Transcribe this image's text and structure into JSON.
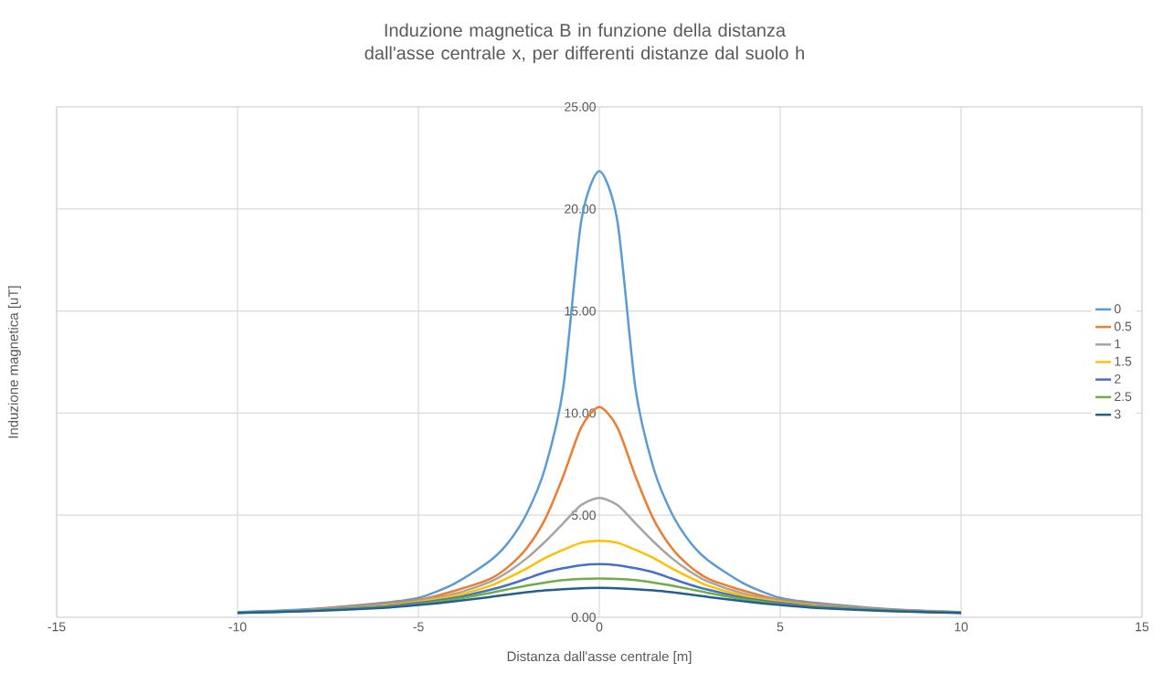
{
  "chart_data": {
    "type": "line",
    "title": "Induzione magnetica B in funzione della distanza dall'asse centrale x, per differenti distanze dal suolo h",
    "xlabel": "Distanza dall'asse centrale [m]",
    "ylabel": "Induzione magnetica [uT]",
    "x": [
      -10,
      -8,
      -6,
      -5,
      -4,
      -3,
      -2.5,
      -2,
      -1.5,
      -1,
      -0.5,
      0,
      0.5,
      1,
      1.5,
      2,
      2.5,
      3,
      4,
      5,
      6,
      8,
      10
    ],
    "series": [
      {
        "name": "0",
        "color": "#5b9bd5",
        "values": [
          0.25,
          0.4,
          0.7,
          0.95,
          1.65,
          2.8,
          3.7,
          5.1,
          7.3,
          11.2,
          19.4,
          21.85,
          19.4,
          11.2,
          7.3,
          5.1,
          3.7,
          2.8,
          1.65,
          0.95,
          0.7,
          0.4,
          0.25
        ]
      },
      {
        "name": "0.5",
        "color": "#ed7d31",
        "values": [
          null,
          0.38,
          0.65,
          0.85,
          1.3,
          1.9,
          2.5,
          3.4,
          4.8,
          6.9,
          9.3,
          10.3,
          9.3,
          6.9,
          4.8,
          3.4,
          2.5,
          1.9,
          1.3,
          0.85,
          0.65,
          0.38,
          0.24
        ]
      },
      {
        "name": "1",
        "color": "#a5a5a5",
        "values": [
          0.24,
          0.36,
          0.6,
          0.8,
          1.15,
          1.75,
          2.25,
          2.9,
          3.7,
          4.6,
          5.5,
          5.85,
          5.5,
          4.6,
          3.7,
          2.9,
          2.25,
          1.75,
          1.15,
          0.8,
          0.6,
          0.36,
          0.24
        ]
      },
      {
        "name": "1.5",
        "color": "#ffc000",
        "values": [
          null,
          null,
          0.55,
          0.75,
          1.05,
          1.55,
          1.95,
          2.4,
          2.9,
          3.3,
          3.65,
          3.75,
          3.65,
          3.3,
          2.9,
          2.4,
          1.95,
          1.55,
          1.05,
          0.75,
          0.55,
          null,
          null
        ]
      },
      {
        "name": "2",
        "color": "#4472c4",
        "values": [
          0.22,
          0.33,
          0.52,
          0.7,
          0.95,
          1.35,
          1.6,
          1.9,
          2.2,
          2.4,
          2.55,
          2.6,
          2.55,
          2.4,
          2.2,
          1.9,
          1.6,
          1.35,
          0.95,
          0.7,
          0.52,
          0.33,
          0.22
        ]
      },
      {
        "name": "2.5",
        "color": "#70ad47",
        "values": [
          0.22,
          0.32,
          0.5,
          0.65,
          0.88,
          1.2,
          1.38,
          1.55,
          1.7,
          1.82,
          1.88,
          1.9,
          1.88,
          1.82,
          1.7,
          1.55,
          1.38,
          1.2,
          0.88,
          0.65,
          0.5,
          0.32,
          0.22
        ]
      },
      {
        "name": "3",
        "color": "#255e91",
        "values": [
          0.21,
          0.3,
          0.46,
          0.6,
          0.78,
          1.0,
          1.12,
          1.23,
          1.32,
          1.38,
          1.42,
          1.44,
          1.42,
          1.38,
          1.32,
          1.23,
          1.12,
          1.0,
          0.78,
          0.6,
          0.46,
          0.3,
          0.21
        ]
      }
    ],
    "xlim": [
      -15,
      15
    ],
    "xticks": [
      -15,
      -10,
      -5,
      0,
      5,
      10,
      15
    ],
    "ylim": [
      0,
      25
    ],
    "yticks": [
      {
        "value": 0,
        "label": "0.00"
      },
      {
        "value": 5,
        "label": "5.00"
      },
      {
        "value": 10,
        "label": "10.00"
      },
      {
        "value": 15,
        "label": "15.00"
      },
      {
        "value": 20,
        "label": "20.00"
      },
      {
        "value": 25,
        "label": "25.00"
      }
    ],
    "grid": true,
    "legend": "right",
    "marker": "none",
    "line_style": "solid"
  }
}
